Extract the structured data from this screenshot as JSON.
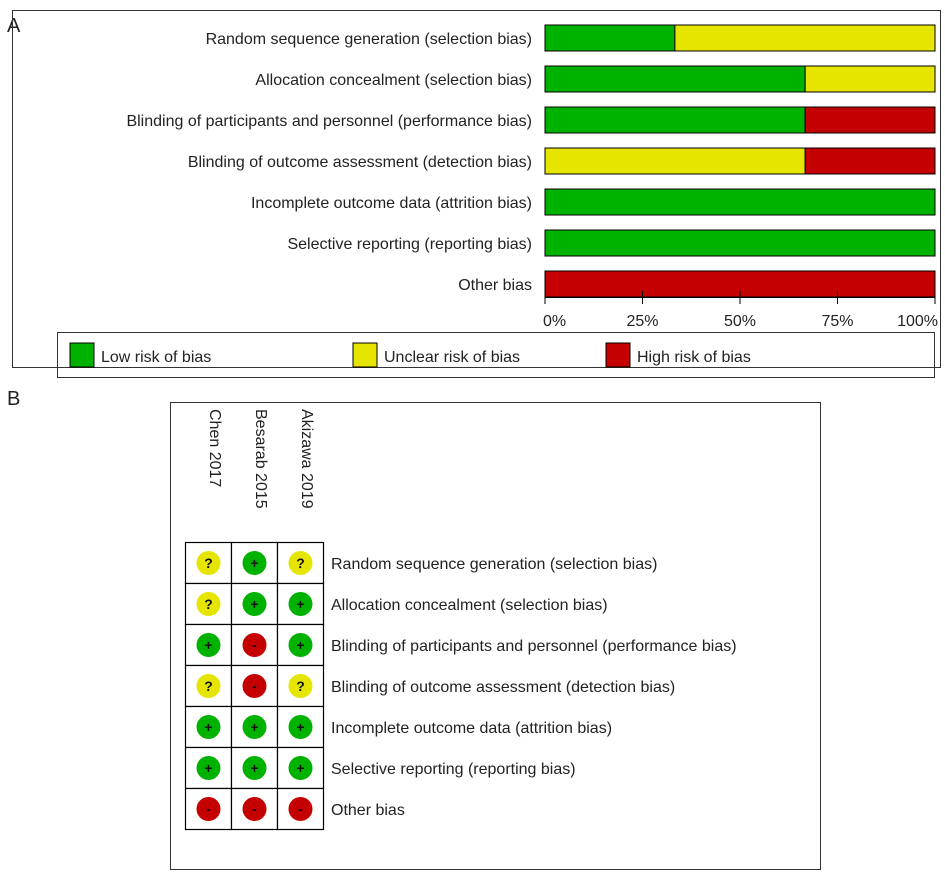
{
  "colors": {
    "low": "#00b200",
    "unclear": "#e5e500",
    "high": "#c40000"
  },
  "panels": {
    "a_label": "A",
    "b_label": "B"
  },
  "chart_data": [
    {
      "type": "bar",
      "orientation": "horizontal-stacked-percent",
      "categories": [
        "Random sequence generation (selection bias)",
        "Allocation concealment (selection bias)",
        "Blinding of participants and personnel (performance bias)",
        "Blinding of outcome assessment (detection bias)",
        "Incomplete outcome data (attrition bias)",
        "Selective reporting (reporting bias)",
        "Other bias"
      ],
      "series": [
        {
          "name": "Low risk of bias",
          "color": "#00b200",
          "values": [
            33.3,
            66.7,
            66.7,
            0,
            100,
            100,
            0
          ]
        },
        {
          "name": "Unclear risk of bias",
          "color": "#e5e500",
          "values": [
            66.7,
            33.3,
            0,
            66.7,
            0,
            0,
            0
          ]
        },
        {
          "name": "High risk of bias",
          "color": "#c40000",
          "values": [
            0,
            0,
            33.3,
            33.3,
            0,
            0,
            100
          ]
        }
      ],
      "xlim": [
        0,
        100
      ],
      "xticks": [
        "0%",
        "25%",
        "50%",
        "75%",
        "100%"
      ],
      "legend": "bottom"
    },
    {
      "type": "table",
      "columns": [
        "Chen 2017",
        "Besarab 2015",
        "Akizawa 2019"
      ],
      "rows": [
        "Random sequence generation (selection bias)",
        "Allocation concealment (selection bias)",
        "Blinding of participants and personnel (performance bias)",
        "Blinding of outcome assessment (detection bias)",
        "Incomplete outcome data (attrition bias)",
        "Selective reporting (reporting bias)",
        "Other bias"
      ],
      "cells": [
        [
          "unclear",
          "low",
          "unclear"
        ],
        [
          "unclear",
          "low",
          "low"
        ],
        [
          "low",
          "high",
          "low"
        ],
        [
          "unclear",
          "high",
          "unclear"
        ],
        [
          "low",
          "low",
          "low"
        ],
        [
          "low",
          "low",
          "low"
        ],
        [
          "high",
          "high",
          "high"
        ]
      ],
      "symbols": {
        "low": "+",
        "unclear": "?",
        "high": "-"
      }
    }
  ]
}
